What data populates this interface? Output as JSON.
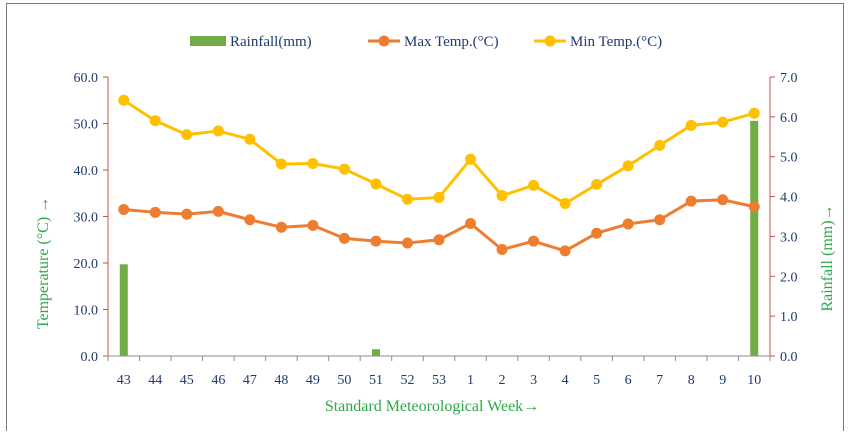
{
  "chart_data": {
    "type": "bar+line",
    "legend": {
      "placement": "top",
      "items": [
        {
          "label": "Rainfall(mm)",
          "marker": "bar",
          "color": "#70ad47"
        },
        {
          "label": "Max Temp.(°C)",
          "marker": "line",
          "color": "#ed7d31"
        },
        {
          "label": "Min Temp.(°C)",
          "marker": "line",
          "color": "#ffc000"
        }
      ]
    },
    "categories": [
      "43",
      "44",
      "45",
      "46",
      "47",
      "48",
      "49",
      "50",
      "51",
      "52",
      "53",
      "1",
      "2",
      "3",
      "4",
      "5",
      "6",
      "7",
      "8",
      "9",
      "10"
    ],
    "xlabel": "Standard Meteorological Week→",
    "ylabel_left": "Temperature (°C) →",
    "ylabel_right": "Rainfall (mm)→",
    "ylim_left": [
      0,
      60
    ],
    "ylim_right": [
      0,
      7
    ],
    "yticks_left": [
      "0.0",
      "10.0",
      "20.0",
      "30.0",
      "40.0",
      "50.0",
      "60.0"
    ],
    "yticks_right": [
      "0.0",
      "1.0",
      "2.0",
      "3.0",
      "4.0",
      "5.0",
      "6.0",
      "7.0"
    ],
    "grid": false,
    "series": [
      {
        "name": "Rainfall(mm)",
        "type": "bar",
        "axis": "right",
        "color": "#70ad47",
        "values": [
          2.3,
          0,
          0,
          0,
          0,
          0,
          0,
          0,
          0.17,
          0,
          0,
          0,
          0,
          0,
          0,
          0,
          0,
          0,
          0,
          0,
          5.9
        ]
      },
      {
        "name": "Max Temp.(°C)",
        "type": "line",
        "axis": "left",
        "color": "#ed7d31",
        "values": [
          31.5,
          30.9,
          30.5,
          31.1,
          29.3,
          27.7,
          28.1,
          25.3,
          24.7,
          24.3,
          25.0,
          28.5,
          22.9,
          24.7,
          22.6,
          26.4,
          28.4,
          29.3,
          33.3,
          33.6,
          32.1
        ]
      },
      {
        "name": "Min Temp.(°C)",
        "type": "line",
        "axis": "left",
        "color": "#ffc000",
        "values": [
          55.0,
          50.6,
          47.6,
          48.4,
          46.6,
          41.3,
          41.4,
          40.2,
          37.0,
          33.7,
          34.1,
          42.3,
          34.5,
          36.7,
          32.8,
          36.9,
          40.9,
          45.3,
          49.6,
          50.3,
          52.2
        ]
      }
    ]
  }
}
